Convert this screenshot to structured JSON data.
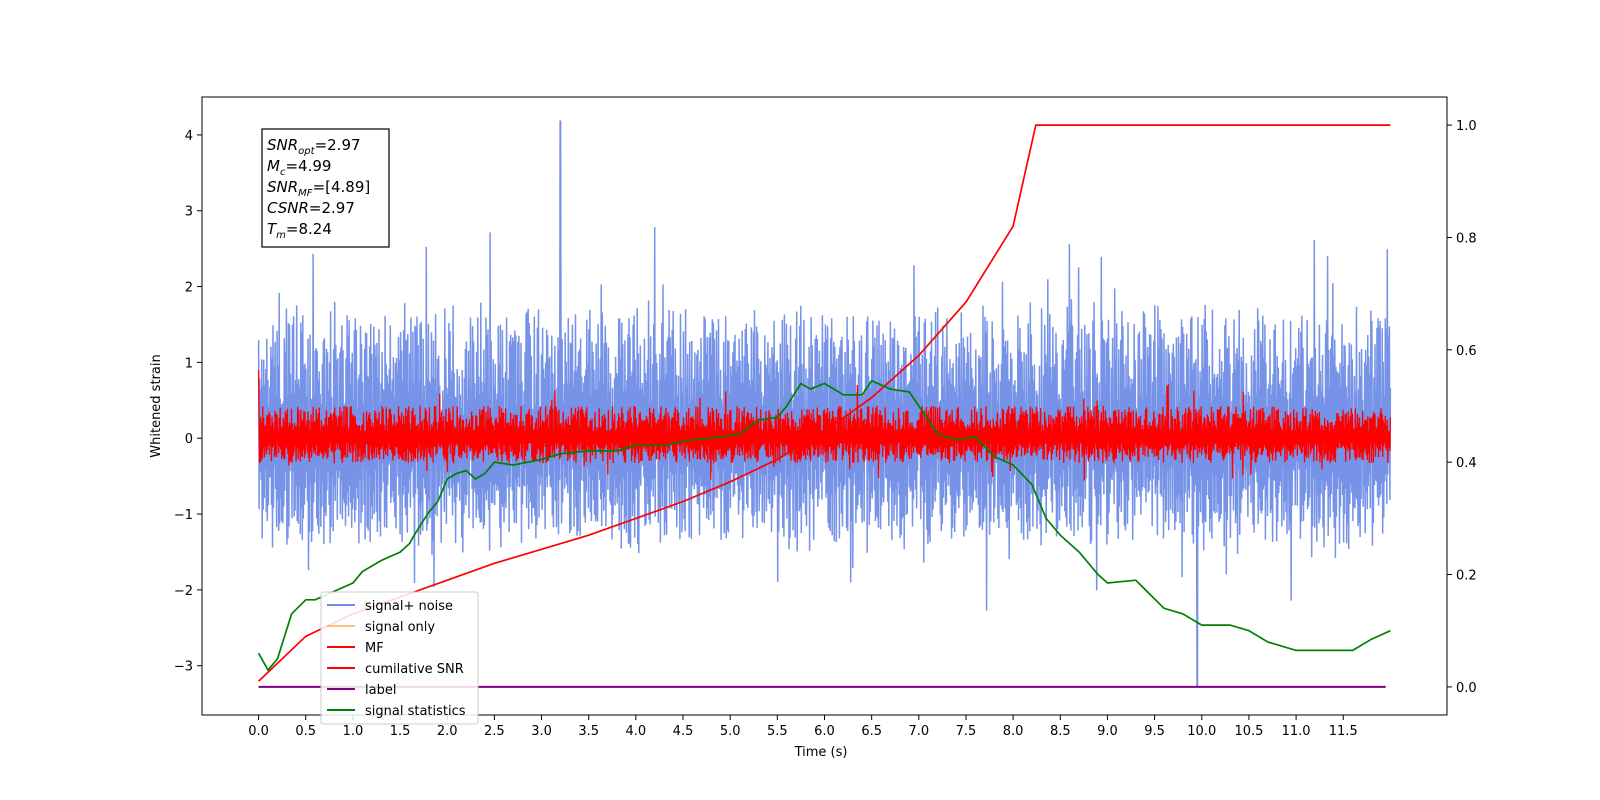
{
  "chart_data": {
    "type": "line",
    "xlabel": "Time (s)",
    "ylabel": "Whitened strain",
    "xlim": [
      -0.6,
      12.6
    ],
    "ylim": [
      -3.65,
      4.5
    ],
    "y2lim": [
      -0.05,
      1.05
    ],
    "x_ticks": [
      "0.0",
      "0.5",
      "1.0",
      "1.5",
      "2.0",
      "2.5",
      "3.0",
      "3.5",
      "4.0",
      "4.5",
      "5.0",
      "5.5",
      "6.0",
      "6.5",
      "7.0",
      "7.5",
      "8.0",
      "8.5",
      "9.0",
      "9.5",
      "10.0",
      "10.5",
      "11.0",
      "11.5"
    ],
    "y_ticks": [
      "4",
      "3",
      "2",
      "1",
      "0",
      "−1",
      "−2",
      "−3"
    ],
    "y2_ticks": [
      "1.0",
      "0.8",
      "0.6",
      "0.4",
      "0.2",
      "0.0"
    ],
    "annotation": {
      "snr_opt": "=2.97",
      "mc": "=4.99",
      "snr_mf": "=[4.89]",
      "csnr": "=2.97",
      "tm": "=8.24"
    },
    "legend": {
      "placement": "lower-left",
      "entries": [
        {
          "label": "signal+ noise",
          "color": "#6f8de6"
        },
        {
          "label": "signal only",
          "color": "#ffbf80"
        },
        {
          "label": "MF",
          "color": "#ff0000"
        },
        {
          "label": "cumilative SNR",
          "color": "#ff0000"
        },
        {
          "label": "label",
          "color": "#800080"
        },
        {
          "label": "signal statistics",
          "color": "#008000"
        }
      ]
    },
    "series": [
      {
        "name": "signal+ noise",
        "axis": "left",
        "x_range": [
          0,
          12
        ],
        "band": [
          -1.2,
          1.5
        ],
        "peak_max": 4.18,
        "peak_min": -3.27,
        "color": "#6f8de6"
      },
      {
        "name": "signal only",
        "axis": "left",
        "x_range": [
          0,
          12
        ],
        "values": [
          0,
          0
        ],
        "color": "#ffbf80"
      },
      {
        "name": "MF",
        "axis": "left",
        "x_range": [
          0,
          12
        ],
        "band": [
          -0.3,
          0.45
        ],
        "color": "#ff0000"
      },
      {
        "name": "cumilative SNR",
        "axis": "right",
        "t_merge": 8.24,
        "x_end": 12,
        "points": [
          [
            0,
            0.01
          ],
          [
            0.5,
            0.09
          ],
          [
            1,
            0.13
          ],
          [
            1.5,
            0.16
          ],
          [
            2,
            0.19
          ],
          [
            2.5,
            0.22
          ],
          [
            3,
            0.245
          ],
          [
            3.5,
            0.27
          ],
          [
            4,
            0.3
          ],
          [
            4.5,
            0.33
          ],
          [
            5,
            0.365
          ],
          [
            5.5,
            0.405
          ],
          [
            6,
            0.455
          ],
          [
            6.5,
            0.515
          ],
          [
            7,
            0.59
          ],
          [
            7.5,
            0.685
          ],
          [
            8,
            0.82
          ],
          [
            8.24,
            1.0
          ],
          [
            12,
            1.0
          ]
        ],
        "color": "#ff0000"
      },
      {
        "name": "label",
        "axis": "right",
        "x_range": [
          0,
          11.95
        ],
        "values": [
          0.0,
          0.0
        ],
        "color": "#800080"
      },
      {
        "name": "signal statistics",
        "axis": "right",
        "color": "#008000",
        "points": [
          [
            0,
            0.06
          ],
          [
            0.1,
            0.03
          ],
          [
            0.2,
            0.05
          ],
          [
            0.35,
            0.13
          ],
          [
            0.5,
            0.155
          ],
          [
            0.6,
            0.155
          ],
          [
            0.8,
            0.17
          ],
          [
            1.0,
            0.185
          ],
          [
            1.1,
            0.205
          ],
          [
            1.3,
            0.225
          ],
          [
            1.5,
            0.24
          ],
          [
            1.6,
            0.255
          ],
          [
            1.65,
            0.27
          ],
          [
            1.8,
            0.31
          ],
          [
            1.9,
            0.33
          ],
          [
            2.0,
            0.37
          ],
          [
            2.1,
            0.38
          ],
          [
            2.2,
            0.385
          ],
          [
            2.3,
            0.37
          ],
          [
            2.4,
            0.38
          ],
          [
            2.5,
            0.4
          ],
          [
            2.7,
            0.395
          ],
          [
            3.0,
            0.405
          ],
          [
            3.2,
            0.415
          ],
          [
            3.5,
            0.42
          ],
          [
            3.8,
            0.42
          ],
          [
            4.0,
            0.43
          ],
          [
            4.3,
            0.43
          ],
          [
            4.6,
            0.44
          ],
          [
            4.9,
            0.445
          ],
          [
            5.1,
            0.45
          ],
          [
            5.3,
            0.475
          ],
          [
            5.5,
            0.48
          ],
          [
            5.6,
            0.5
          ],
          [
            5.75,
            0.54
          ],
          [
            5.85,
            0.53
          ],
          [
            6.0,
            0.54
          ],
          [
            6.2,
            0.52
          ],
          [
            6.4,
            0.52
          ],
          [
            6.5,
            0.545
          ],
          [
            6.7,
            0.53
          ],
          [
            6.9,
            0.525
          ],
          [
            7.0,
            0.5
          ],
          [
            7.2,
            0.45
          ],
          [
            7.4,
            0.44
          ],
          [
            7.6,
            0.445
          ],
          [
            7.8,
            0.41
          ],
          [
            8.0,
            0.395
          ],
          [
            8.2,
            0.36
          ],
          [
            8.35,
            0.3
          ],
          [
            8.5,
            0.27
          ],
          [
            8.7,
            0.24
          ],
          [
            8.9,
            0.2
          ],
          [
            9.0,
            0.185
          ],
          [
            9.3,
            0.19
          ],
          [
            9.6,
            0.14
          ],
          [
            9.8,
            0.13
          ],
          [
            10.0,
            0.11
          ],
          [
            10.3,
            0.11
          ],
          [
            10.5,
            0.1
          ],
          [
            10.7,
            0.08
          ],
          [
            11.0,
            0.065
          ],
          [
            11.3,
            0.065
          ],
          [
            11.6,
            0.065
          ],
          [
            11.8,
            0.085
          ],
          [
            12.0,
            0.1
          ]
        ]
      }
    ]
  }
}
